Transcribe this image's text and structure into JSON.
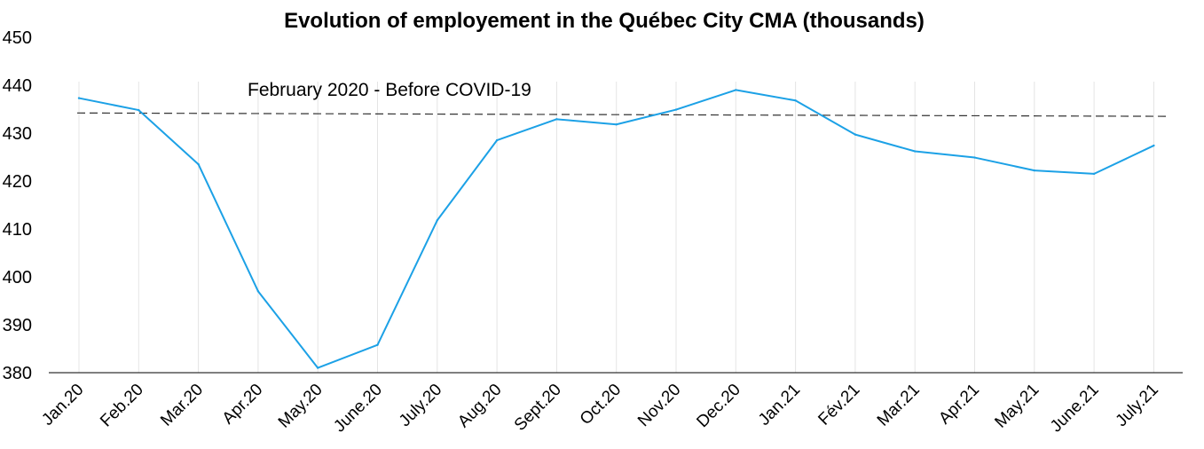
{
  "chart_data": {
    "type": "line",
    "title": "Evolution of employement in the Québec City CMA (thousands)",
    "xlabel": "",
    "ylabel": "",
    "ylim": [
      380,
      450
    ],
    "yticks": [
      "380",
      "390",
      "400",
      "410",
      "420",
      "430",
      "440",
      "450"
    ],
    "categories": [
      "Jan.20",
      "Feb.20",
      "Mar.20",
      "Apr.20",
      "May.20",
      "June.20",
      "July.20",
      "Aug.20",
      "Sept.20",
      "Oct.20",
      "Nov.20",
      "Dec.20",
      "Jan.21",
      "Fév.21",
      "Mar.21",
      "Apr.21",
      "May.21",
      "June.21",
      "July.21"
    ],
    "series": [
      {
        "values": [
          437.3,
          434.8,
          423.5,
          397.0,
          381.0,
          385.8,
          411.8,
          428.5,
          432.9,
          431.8,
          434.9,
          439.0,
          436.8,
          429.7,
          426.2,
          424.9,
          422.2,
          421.5,
          427.4
        ],
        "color": "#1CA1E6"
      }
    ],
    "reference_line": {
      "label": "February 2020 - Before COVID-19",
      "value_start": 434.2,
      "value_end": 433.5,
      "style": "dashed",
      "color": "#333333"
    },
    "grid": "vertical",
    "legend": "none"
  }
}
